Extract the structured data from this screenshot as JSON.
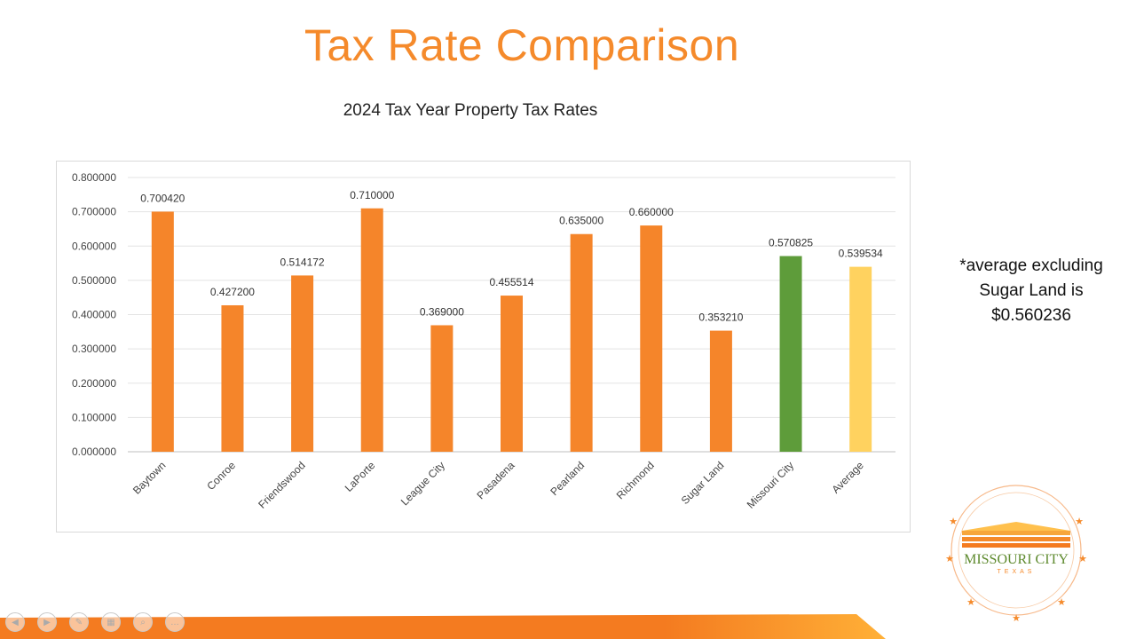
{
  "slide": {
    "title": "Tax Rate Comparison",
    "note_lines": [
      "*average excluding",
      "Sugar Land is",
      "$0.560236"
    ]
  },
  "logo": {
    "name": "missouri-city-texas-logo",
    "text_main": "MISSOURI CITY",
    "text_sub": "TEXAS"
  },
  "colors": {
    "title": "#f58a2b",
    "bar_default": "#f5852a",
    "bar_missouri_city": "#5e9c3a",
    "bar_average": "#ffd25f",
    "bottom_bar": "#f47b20",
    "bottom_bar_end": "#ffb037"
  },
  "controls": [
    {
      "name": "previous-slide-button",
      "icon": "chevron-left-icon"
    },
    {
      "name": "next-slide-button",
      "icon": "chevron-right-icon"
    },
    {
      "name": "pen-tool-button",
      "icon": "pen-icon"
    },
    {
      "name": "slide-grid-button",
      "icon": "grid-icon"
    },
    {
      "name": "zoom-button",
      "icon": "magnifier-icon"
    },
    {
      "name": "more-options-button",
      "icon": "ellipsis-icon"
    }
  ],
  "chart_data": {
    "type": "bar",
    "title": "2024 Tax Year Property Tax Rates",
    "categories": [
      "Baytown",
      "Conroe",
      "Friendswood",
      "LaPorte",
      "League City",
      "Pasadena",
      "Pearland",
      "Richmond",
      "Sugar Land",
      "Missouri City",
      "Average"
    ],
    "values": [
      0.70042,
      0.4272,
      0.514172,
      0.71,
      0.369,
      0.455514,
      0.635,
      0.66,
      0.35321,
      0.570825,
      0.539534
    ],
    "data_labels": [
      "0.700420",
      "0.427200",
      "0.514172",
      "0.710000",
      "0.369000",
      "0.455514",
      "0.635000",
      "0.660000",
      "0.353210",
      "0.570825",
      "0.539534"
    ],
    "y_ticks": [
      "0.000000",
      "0.100000",
      "0.200000",
      "0.300000",
      "0.400000",
      "0.500000",
      "0.600000",
      "0.700000",
      "0.800000"
    ],
    "ylim": [
      0,
      0.8
    ],
    "grid": true,
    "legend": "none"
  }
}
